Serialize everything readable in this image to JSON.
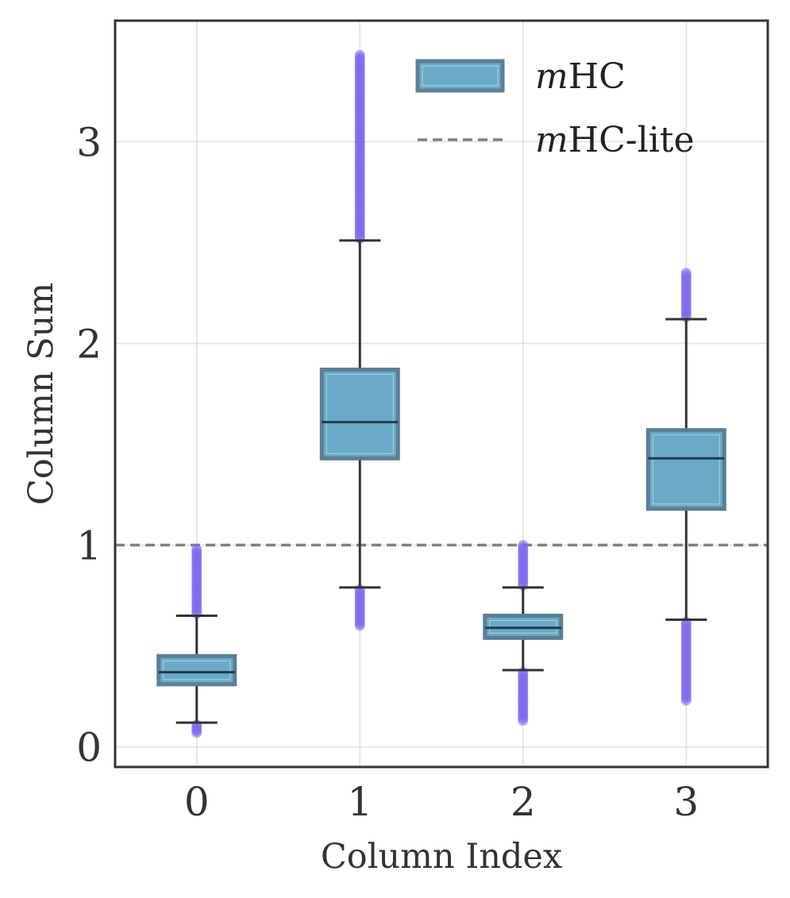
{
  "chart_data": {
    "type": "box",
    "xlabel": "Column Index",
    "ylabel": "Column Sum",
    "categories": [
      "0",
      "1",
      "2",
      "3"
    ],
    "x_ticks": [
      "0",
      "1",
      "2",
      "3"
    ],
    "y_ticks": [
      "0",
      "1",
      "2",
      "3"
    ],
    "xlim": [
      -0.5,
      3.5
    ],
    "ylim": [
      -0.1,
      3.6
    ],
    "grid": true,
    "legend_position": "top-right",
    "boxes": [
      {
        "category": "0",
        "q1": 0.31,
        "median": 0.37,
        "q3": 0.45,
        "whisker_low": 0.12,
        "whisker_high": 0.65,
        "outliers_low_range": [
          0.07,
          0.11
        ],
        "outliers_high_range": [
          0.66,
          0.98
        ]
      },
      {
        "category": "1",
        "q1": 1.43,
        "median": 1.61,
        "q3": 1.87,
        "whisker_low": 0.79,
        "whisker_high": 2.51,
        "outliers_low_range": [
          0.6,
          0.78
        ],
        "outliers_high_range": [
          2.52,
          3.43
        ]
      },
      {
        "category": "2",
        "q1": 0.54,
        "median": 0.59,
        "q3": 0.65,
        "whisker_low": 0.38,
        "whisker_high": 0.79,
        "outliers_low_range": [
          0.13,
          0.37
        ],
        "outliers_high_range": [
          0.8,
          1.0
        ]
      },
      {
        "category": "3",
        "q1": 1.18,
        "median": 1.43,
        "q3": 1.57,
        "whisker_low": 0.63,
        "whisker_high": 2.12,
        "outliers_low_range": [
          0.23,
          0.62
        ],
        "outliers_high_range": [
          2.13,
          2.35
        ]
      }
    ],
    "reference_line": {
      "name": "mHC-lite",
      "y": 1.0,
      "style": "dashed"
    },
    "legend": [
      {
        "prefix": "m",
        "suffix": "HC",
        "kind": "box"
      },
      {
        "prefix": "m",
        "suffix": "HC-lite",
        "kind": "dashed-line"
      }
    ],
    "colors": {
      "box_fill": "#6aaac6",
      "box_edge": "#5a7f97",
      "whisker": "#333333",
      "median": "#1f3d4d",
      "outlier": "#7b68ee",
      "reference_line": "#808080",
      "axes": "#333333",
      "grid": "#e6e6e6"
    }
  }
}
